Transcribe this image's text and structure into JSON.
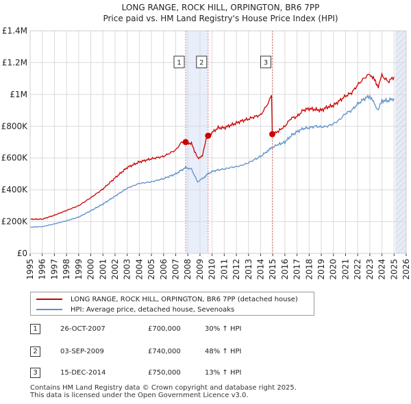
{
  "chart_data": {
    "type": "line",
    "title": "LONG RANGE, ROCK HILL, ORPINGTON, BR6 7PP",
    "subtitle": "Price paid vs. HM Land Registry's House Price Index (HPI)",
    "xlim": [
      1995,
      2026
    ],
    "ylim": [
      0,
      1400000
    ],
    "y_ticks": [
      {
        "value": 0,
        "label": "£0"
      },
      {
        "value": 200000,
        "label": "£200K"
      },
      {
        "value": 400000,
        "label": "£400K"
      },
      {
        "value": 600000,
        "label": "£600K"
      },
      {
        "value": 800000,
        "label": "£800K"
      },
      {
        "value": 1000000,
        "label": "£1M"
      },
      {
        "value": 1200000,
        "label": "£1.2M"
      },
      {
        "value": 1400000,
        "label": "£1.4M"
      }
    ],
    "x_ticks": [
      "1995",
      "1996",
      "1997",
      "1998",
      "1999",
      "2000",
      "2001",
      "2002",
      "2003",
      "2004",
      "2005",
      "2006",
      "2007",
      "2008",
      "2009",
      "2010",
      "2011",
      "2012",
      "2013",
      "2014",
      "2015",
      "2016",
      "2017",
      "2018",
      "2019",
      "2020",
      "2021",
      "2022",
      "2023",
      "2024",
      "2025",
      "2026"
    ],
    "grid": true,
    "shaded_ranges": [
      [
        2007.82,
        2009.67
      ],
      [
        2025.1,
        2026
      ]
    ],
    "series": [
      {
        "name": "LONG RANGE, ROCK HILL, ORPINGTON, BR6 7PP (detached house)",
        "color": "#cc0000",
        "x": [
          1995,
          1996,
          1997,
          1998,
          1999,
          2000,
          2001,
          2002,
          2003,
          2004,
          2005,
          2006,
          2007,
          2007.5,
          2007.82,
          2008.3,
          2008.8,
          2009.2,
          2009.5,
          2009.67,
          2010,
          2010.5,
          2011,
          2011.5,
          2012,
          2012.5,
          2013,
          2013.5,
          2014,
          2014.5,
          2014.9,
          2014.96,
          2015.3,
          2016,
          2016.5,
          2017,
          2017.5,
          2018,
          2018.5,
          2019,
          2019.5,
          2020,
          2020.5,
          2021,
          2021.5,
          2022,
          2022.5,
          2023,
          2023.3,
          2023.7,
          2024,
          2024.5,
          2025
        ],
        "y": [
          215000,
          215000,
          240000,
          270000,
          300000,
          350000,
          405000,
          475000,
          540000,
          575000,
          595000,
          610000,
          650000,
          700000,
          700000,
          690000,
          600000,
          610000,
          720000,
          740000,
          760000,
          790000,
          790000,
          805000,
          820000,
          835000,
          845000,
          860000,
          870000,
          930000,
          990000,
          750000,
          760000,
          800000,
          850000,
          860000,
          900000,
          910000,
          905000,
          900000,
          920000,
          930000,
          960000,
          990000,
          1010000,
          1060000,
          1100000,
          1130000,
          1100000,
          1050000,
          1120000,
          1080000,
          1110000
        ]
      },
      {
        "name": "HPI: Average price, detached house, Sevenoaks",
        "color": "#5b8fc9",
        "x": [
          1995,
          1996,
          1997,
          1998,
          1999,
          2000,
          2001,
          2002,
          2003,
          2004,
          2005,
          2006,
          2007,
          2007.82,
          2008.3,
          2008.8,
          2009.2,
          2009.67,
          2010,
          2010.5,
          2011,
          2011.5,
          2012,
          2012.5,
          2013,
          2013.5,
          2014,
          2014.5,
          2014.96,
          2015.3,
          2016,
          2016.5,
          2017,
          2017.5,
          2018,
          2018.5,
          2019,
          2019.5,
          2020,
          2020.5,
          2021,
          2021.5,
          2022,
          2022.5,
          2023,
          2023.3,
          2023.7,
          2024,
          2024.5,
          2025
        ],
        "y": [
          165000,
          168000,
          185000,
          205000,
          228000,
          268000,
          310000,
          360000,
          410000,
          440000,
          450000,
          470000,
          500000,
          540000,
          530000,
          450000,
          470000,
          500000,
          515000,
          525000,
          530000,
          540000,
          545000,
          555000,
          570000,
          590000,
          610000,
          640000,
          665000,
          680000,
          700000,
          740000,
          765000,
          785000,
          790000,
          800000,
          795000,
          800000,
          815000,
          840000,
          880000,
          900000,
          940000,
          970000,
          990000,
          950000,
          900000,
          960000,
          960000,
          975000
        ]
      }
    ],
    "sales": [
      {
        "id": "1",
        "x": 2007.82,
        "y": 700000
      },
      {
        "id": "2",
        "x": 2009.67,
        "y": 740000
      },
      {
        "id": "3",
        "x": 2014.96,
        "y": 750000
      }
    ],
    "legend": {
      "position": "below",
      "entries": [
        {
          "label": "LONG RANGE, ROCK HILL, ORPINGTON, BR6 7PP (detached house)",
          "color": "#cc0000"
        },
        {
          "label": "HPI: Average price, detached house, Sevenoaks",
          "color": "#5b8fc9"
        }
      ]
    }
  },
  "transactions": [
    {
      "id": "1",
      "date": "26-OCT-2007",
      "price": "£700,000",
      "hpi": "30% ↑ HPI"
    },
    {
      "id": "2",
      "date": "03-SEP-2009",
      "price": "£740,000",
      "hpi": "48% ↑ HPI"
    },
    {
      "id": "3",
      "date": "15-DEC-2014",
      "price": "£750,000",
      "hpi": "13% ↑ HPI"
    }
  ],
  "footer": {
    "line1": "Contains HM Land Registry data © Crown copyright and database right 2025.",
    "line2": "This data is licensed under the Open Government Licence v3.0."
  }
}
